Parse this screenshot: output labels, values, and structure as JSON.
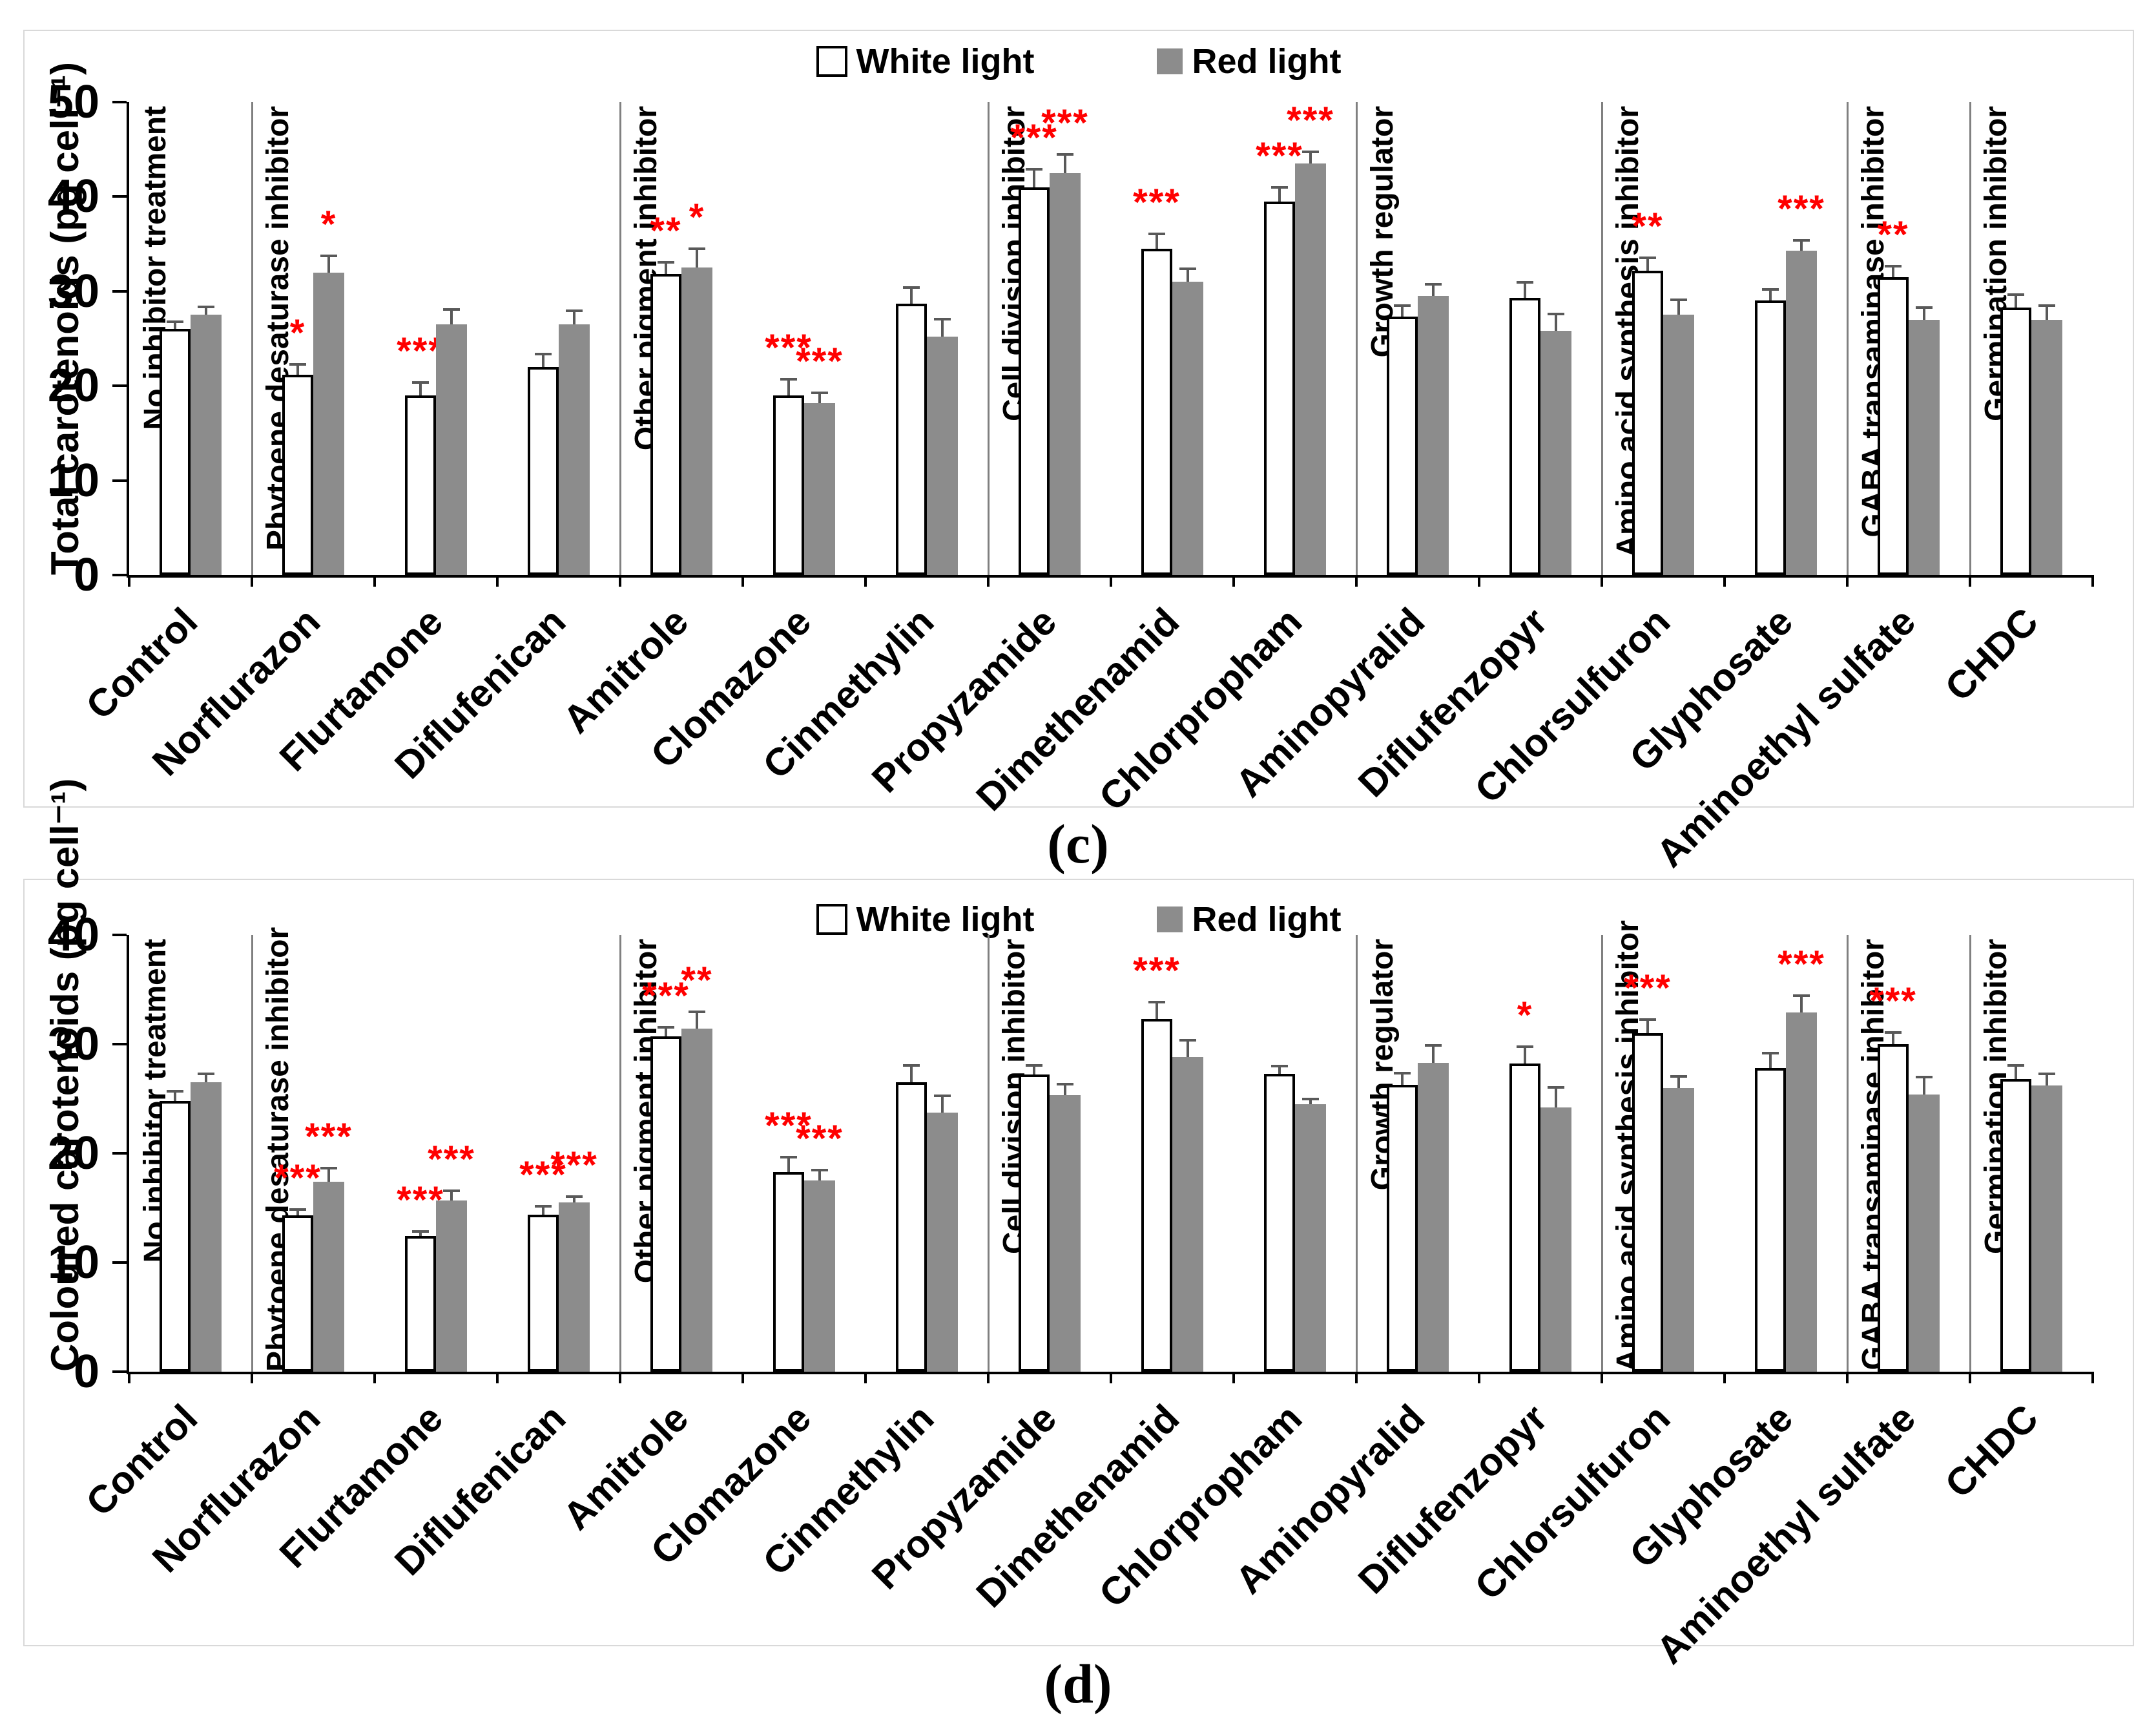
{
  "colors": {
    "white_bar": "#ffffff",
    "red_bar": "#8c8c8c",
    "bar_outline": "#000000",
    "significance": "#ff0000",
    "separator": "#808080",
    "error_bar": "#595959",
    "axis": "#000000",
    "panel_border": "#d9d9d9"
  },
  "chart_data": [
    {
      "id": "c",
      "type": "bar",
      "caption": "(c)",
      "ylabel": "Total carotenoids (pg cell⁻¹)",
      "ylim": [
        0,
        50
      ],
      "yticks": [
        0,
        10,
        20,
        30,
        40,
        50
      ],
      "grid": false,
      "legend_position": "top-center",
      "categories": [
        "Control",
        "Norflurazon",
        "Flurtamone",
        "Diflufenican",
        "Amitrole",
        "Clomazone",
        "Cinmethylin",
        "Propyzamide",
        "Dimethenamid",
        "Chlorpropham",
        "Aminopyralid",
        "Diflufenzopyr",
        "Chlorsulfuron",
        "Glyphosate",
        "Aminoethyl sulfate",
        "CHDC"
      ],
      "groups": [
        {
          "label": "No inhibitor treatment",
          "start": 0,
          "end": 0
        },
        {
          "label": "Phytoene desaturase inhibitor",
          "start": 1,
          "end": 3
        },
        {
          "label": "Other pigment inhibitor",
          "start": 4,
          "end": 6
        },
        {
          "label": "Cell division inhibitor",
          "start": 7,
          "end": 9
        },
        {
          "label": "Growth regulator",
          "start": 10,
          "end": 11
        },
        {
          "label": "Amino acid synthesis inhibitor",
          "start": 12,
          "end": 13
        },
        {
          "label": "GABA transaminase inhibitor",
          "start": 14,
          "end": 14
        },
        {
          "label": "Germination inhibitor",
          "start": 15,
          "end": 15
        }
      ],
      "series": [
        {
          "name": "White light",
          "values": [
            26.0,
            21.2,
            19.0,
            22.0,
            31.8,
            19.0,
            28.7,
            41.0,
            34.5,
            39.5,
            27.3,
            29.3,
            32.2,
            29.0,
            31.5,
            28.3
          ],
          "errors": [
            0.7,
            1.0,
            1.3,
            1.3,
            1.2,
            1.6,
            1.6,
            1.8,
            1.5,
            1.4,
            1.1,
            1.6,
            1.3,
            1.1,
            1.1,
            1.3
          ],
          "sig": [
            "",
            "*",
            "***",
            "",
            "**",
            "***",
            "",
            "***",
            "***",
            "***",
            "",
            "",
            "**",
            "",
            "**",
            ""
          ]
        },
        {
          "name": "Red light",
          "values": [
            27.5,
            32.0,
            26.5,
            26.5,
            32.5,
            18.2,
            25.2,
            42.5,
            31.0,
            43.5,
            29.5,
            25.8,
            27.5,
            34.3,
            27.0,
            27.0
          ],
          "errors": [
            0.8,
            1.7,
            1.5,
            1.4,
            1.9,
            1.0,
            1.8,
            1.9,
            1.3,
            1.2,
            1.2,
            1.7,
            1.5,
            1.0,
            1.2,
            1.4
          ],
          "sig": [
            "",
            "*",
            "",
            "",
            "*",
            "***",
            "",
            "***",
            "",
            "***",
            "",
            "",
            "",
            "***",
            "",
            ""
          ]
        }
      ]
    },
    {
      "id": "d",
      "type": "bar",
      "caption": "(d)",
      "ylabel": "Coloured carotenoids (pg cell⁻¹)",
      "ylim": [
        0,
        40
      ],
      "yticks": [
        0,
        10,
        20,
        30,
        40
      ],
      "grid": false,
      "legend_position": "top-center",
      "categories": [
        "Control",
        "Norflurazon",
        "Flurtamone",
        "Diflufenican",
        "Amitrole",
        "Clomazone",
        "Cinmethylin",
        "Propyzamide",
        "Dimethenamid",
        "Chlorpropham",
        "Aminopyralid",
        "Diflufenzopyr",
        "Chlorsulfuron",
        "Glyphosate",
        "Aminoethyl sulfate",
        "CHDC"
      ],
      "groups": [
        {
          "label": "No inhibitor treatment",
          "start": 0,
          "end": 0
        },
        {
          "label": "Phytoene desaturase inhibitor",
          "start": 1,
          "end": 3
        },
        {
          "label": "Other pigment inhibitor",
          "start": 4,
          "end": 6
        },
        {
          "label": "Cell division inhibitor",
          "start": 7,
          "end": 9
        },
        {
          "label": "Growth regulator",
          "start": 10,
          "end": 11
        },
        {
          "label": "Amino acid synthesis inhibitor",
          "start": 12,
          "end": 13
        },
        {
          "label": "GABA transaminase inhibitor",
          "start": 14,
          "end": 14
        },
        {
          "label": "Germination inhibitor",
          "start": 15,
          "end": 15
        }
      ],
      "series": [
        {
          "name": "White light",
          "values": [
            24.8,
            14.3,
            12.4,
            14.4,
            30.7,
            18.3,
            26.5,
            27.2,
            32.3,
            27.3,
            26.3,
            28.2,
            31.0,
            27.8,
            30.0,
            26.8
          ],
          "errors": [
            0.8,
            0.5,
            0.4,
            0.7,
            0.8,
            1.3,
            1.5,
            0.8,
            1.5,
            0.6,
            1.0,
            1.5,
            1.2,
            1.3,
            1.0,
            1.2
          ],
          "sig": [
            "",
            "***",
            "***",
            "***",
            "***",
            "***",
            "",
            "",
            "***",
            "",
            "",
            "*",
            "***",
            "",
            "***",
            ""
          ]
        },
        {
          "name": "Red light",
          "values": [
            26.5,
            17.4,
            15.7,
            15.5,
            31.4,
            17.5,
            23.7,
            25.3,
            28.8,
            24.5,
            28.3,
            24.2,
            26.0,
            32.9,
            25.4,
            26.2
          ],
          "errors": [
            0.7,
            1.2,
            0.8,
            0.5,
            1.5,
            0.9,
            1.5,
            1.0,
            1.5,
            0.4,
            1.5,
            1.8,
            1.0,
            1.5,
            1.5,
            1.0
          ],
          "sig": [
            "",
            "***",
            "***",
            "***",
            "**",
            "***",
            "",
            "",
            "",
            "",
            "",
            "",
            "",
            "***",
            "",
            ""
          ]
        }
      ]
    }
  ]
}
